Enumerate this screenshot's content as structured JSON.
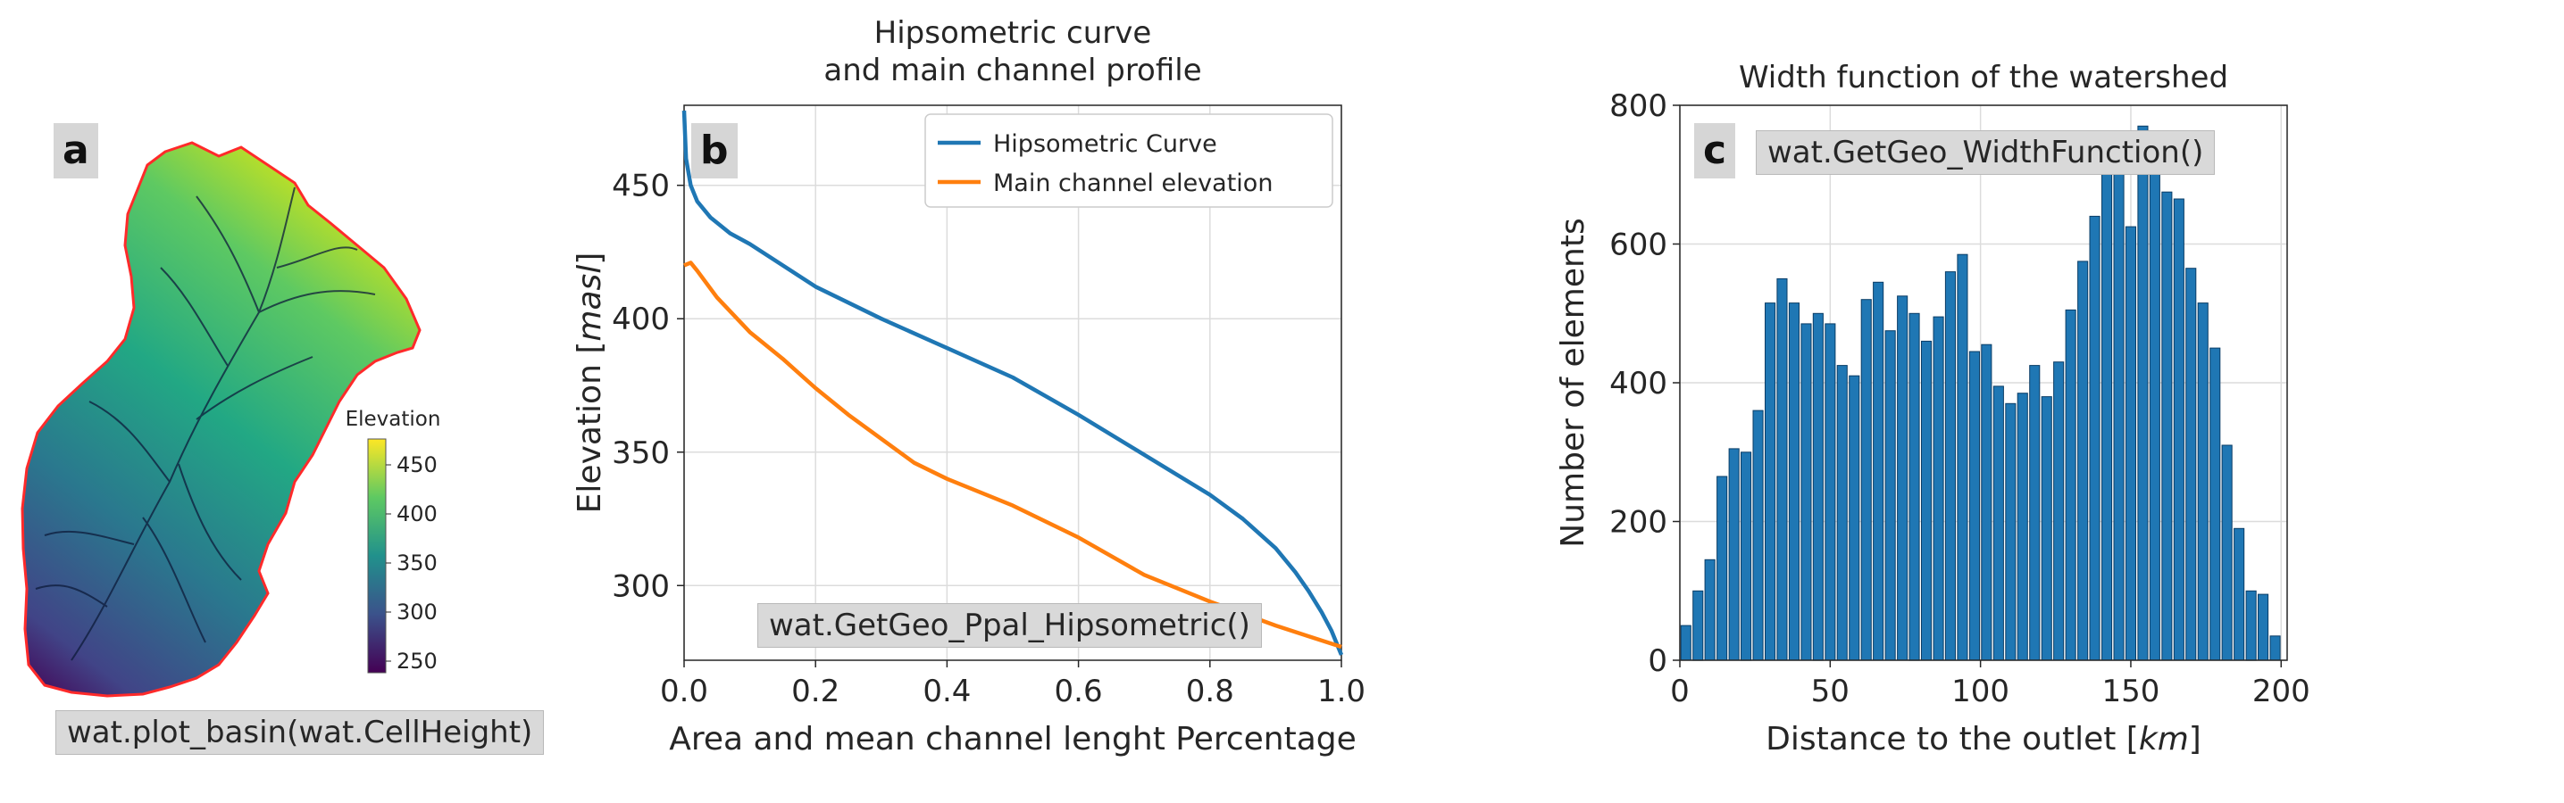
{
  "panel_a": {
    "label": "a",
    "code": "wat.plot_basin(wat.CellHeight)",
    "colorbar": {
      "title": "Elevation",
      "ticks": [
        "450",
        "400",
        "350",
        "300",
        "250"
      ],
      "colors": [
        "#fde725",
        "#22a884",
        "#2a788e",
        "#414487",
        "#440154"
      ]
    },
    "outline_color": "#ff0000"
  },
  "chart_data": [
    {
      "panel": "b",
      "type": "line",
      "title": "Hipsometric curve\nand main channel profile",
      "title_lines": [
        "Hipsometric curve",
        "and main channel profile"
      ],
      "xlabel": "Area and mean channel lenght Percentage",
      "ylabel_prefix": "Elevation [",
      "ylabel_unit": "masl",
      "ylabel_suffix": "]",
      "xlim": [
        0.0,
        1.0
      ],
      "ylim": [
        272,
        480
      ],
      "xticks": [
        0.0,
        0.2,
        0.4,
        0.6,
        0.8,
        1.0
      ],
      "xtick_labels": [
        "0.0",
        "0.2",
        "0.4",
        "0.6",
        "0.8",
        "1.0"
      ],
      "yticks": [
        300,
        350,
        400,
        450
      ],
      "ytick_labels": [
        "300",
        "350",
        "400",
        "450"
      ],
      "grid": true,
      "legend_position": "top-right",
      "annotation": "wat.GetGeo_Ppal_Hipsometric()",
      "series": [
        {
          "name": "Hipsometric Curve",
          "color": "#1f77b4",
          "x": [
            0.0,
            0.003,
            0.01,
            0.02,
            0.04,
            0.07,
            0.1,
            0.15,
            0.2,
            0.3,
            0.4,
            0.5,
            0.6,
            0.7,
            0.8,
            0.85,
            0.9,
            0.93,
            0.95,
            0.97,
            0.985,
            1.0
          ],
          "y": [
            478,
            460,
            450,
            444,
            438,
            432,
            428,
            420,
            412,
            400,
            389,
            378,
            364,
            349,
            334,
            325,
            314,
            305,
            298,
            290,
            283,
            274
          ]
        },
        {
          "name": "Main channel elevation",
          "color": "#ff7f0e",
          "x": [
            0.0,
            0.01,
            0.02,
            0.05,
            0.1,
            0.15,
            0.2,
            0.25,
            0.3,
            0.35,
            0.4,
            0.5,
            0.6,
            0.7,
            0.8,
            0.9,
            0.95,
            1.0
          ],
          "y": [
            420,
            421,
            418,
            408,
            395,
            385,
            374,
            364,
            355,
            346,
            340,
            330,
            318,
            304,
            294,
            285,
            281,
            277
          ]
        }
      ]
    },
    {
      "panel": "c",
      "type": "bar",
      "title": "Width function of the watershed",
      "xlabel_prefix": "Distance to the outlet [",
      "xlabel_unit": "km",
      "xlabel_suffix": "]",
      "ylabel": "Number of elements",
      "xlim": [
        0,
        202
      ],
      "ylim": [
        0,
        800
      ],
      "xticks": [
        0,
        50,
        100,
        150,
        200
      ],
      "xtick_labels": [
        "0",
        "50",
        "100",
        "150",
        "200"
      ],
      "yticks": [
        0,
        200,
        400,
        600,
        800
      ],
      "ytick_labels": [
        "0",
        "200",
        "400",
        "600",
        "800"
      ],
      "grid": true,
      "annotation": "wat.GetGeo_WidthFunction()",
      "bar_color": "#1f77b4",
      "bin_start": 0,
      "bin_width": 4,
      "values": [
        50,
        100,
        145,
        265,
        305,
        300,
        360,
        515,
        550,
        515,
        485,
        500,
        485,
        425,
        410,
        520,
        545,
        475,
        525,
        500,
        460,
        495,
        560,
        585,
        445,
        455,
        395,
        370,
        385,
        425,
        380,
        430,
        505,
        575,
        640,
        715,
        725,
        625,
        770,
        710,
        675,
        665,
        565,
        515,
        450,
        310,
        190,
        100,
        95,
        35
      ]
    }
  ]
}
